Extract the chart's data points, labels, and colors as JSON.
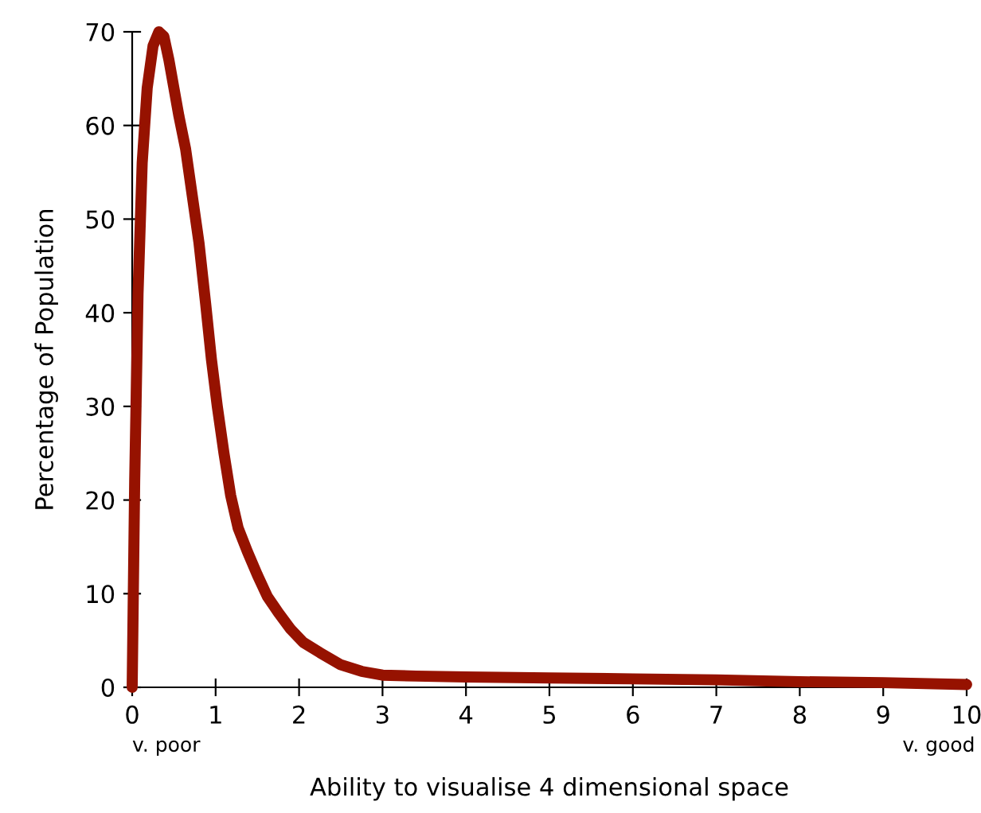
{
  "chart_data": {
    "type": "line",
    "xlabel": "Ability to visualise 4 dimensional space",
    "ylabel": "Percentage of Population",
    "series": [
      {
        "color": "#961200",
        "x": [
          0,
          0.03,
          0.07,
          0.12,
          0.18,
          0.25,
          0.32,
          0.38,
          0.44,
          0.5,
          0.56,
          0.64,
          0.72,
          0.8,
          0.88,
          0.95,
          1.02,
          1.1,
          1.18,
          1.27,
          1.38,
          1.5,
          1.62,
          1.75,
          1.9,
          2.05,
          2.25,
          2.5,
          2.75,
          3,
          3.4,
          4,
          5,
          6,
          7,
          8,
          9,
          10
        ],
        "values": [
          0,
          22,
          42,
          56,
          64,
          68.5,
          70,
          69.5,
          67,
          64,
          61,
          57.5,
          52.5,
          47.5,
          41,
          35,
          30,
          25,
          20.5,
          17,
          14.5,
          12,
          9.7,
          8,
          6.2,
          4.8,
          3.7,
          2.4,
          1.7,
          1.3,
          1.2,
          1.1,
          1,
          0.9,
          0.8,
          0.6,
          0.5,
          0.3
        ]
      }
    ],
    "xlim": [
      0,
      10
    ],
    "xticks": [
      0,
      1,
      2,
      3,
      4,
      5,
      6,
      7,
      8,
      9,
      10
    ],
    "ylim": [
      0,
      70
    ],
    "yticks": [
      0,
      10,
      20,
      30,
      40,
      50,
      60,
      70
    ],
    "annotations": [
      "v. poor",
      "v. good"
    ],
    "grid": false,
    "legend": false,
    "line_style": "solid",
    "marker": "none"
  }
}
